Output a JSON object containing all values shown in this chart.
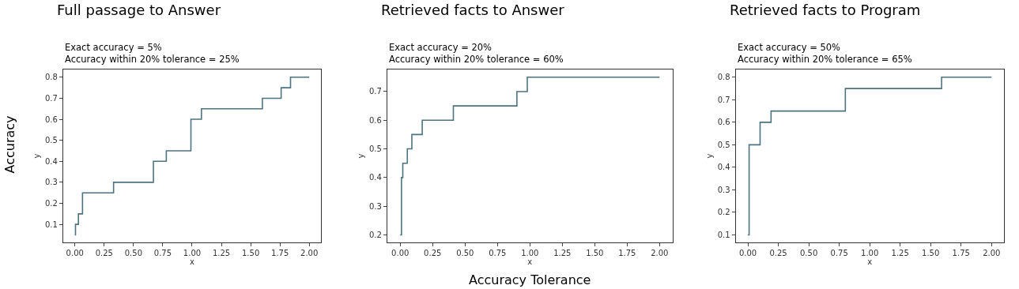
{
  "chart_data": [
    {
      "type": "step",
      "title": "Full passage to Answer",
      "subtitle": "Exact accuracy = 5%\nAccuracy within 20% tolerance = 25%",
      "xlabel": "x",
      "ylabel": "y",
      "annotations": [
        "Accuracy"
      ],
      "series": [
        {
          "color": "#4d7380",
          "x": [
            0,
            0.005,
            0.03,
            0.065,
            0.33,
            0.67,
            0.78,
            0.99,
            1.08,
            1.6,
            1.76,
            1.84,
            2.0
          ],
          "values": [
            0.05,
            0.1,
            0.15,
            0.25,
            0.3,
            0.4,
            0.45,
            0.6,
            0.65,
            0.7,
            0.75,
            0.8,
            0.8
          ]
        }
      ],
      "xlim": [
        -0.1,
        2.1
      ],
      "ylim": [
        0.0125,
        0.8375
      ],
      "xticks": [
        {
          "value": 0,
          "label": "0.00"
        },
        {
          "value": 0.25,
          "label": "0.25"
        },
        {
          "value": 0.5,
          "label": "0.50"
        },
        {
          "value": 0.75,
          "label": "0.75"
        },
        {
          "value": 1,
          "label": "1.00"
        },
        {
          "value": 1.25,
          "label": "1.25"
        },
        {
          "value": 1.5,
          "label": "1.50"
        },
        {
          "value": 1.75,
          "label": "1.75"
        },
        {
          "value": 2,
          "label": "2.00"
        }
      ],
      "yticks": [
        0.1,
        0.2,
        0.3,
        0.4,
        0.5,
        0.6,
        0.7,
        0.8
      ]
    },
    {
      "type": "step",
      "title": "Retrieved facts to Answer",
      "subtitle": "Exact accuracy = 20%\nAccuracy within 20% tolerance = 60%",
      "xlabel": "x",
      "ylabel": "y",
      "annotations": [
        "Accuracy Tolerance"
      ],
      "series": [
        {
          "color": "#4d7380",
          "x": [
            0,
            0.01,
            0.02,
            0.055,
            0.09,
            0.17,
            0.41,
            0.9,
            0.98,
            2.0
          ],
          "values": [
            0.2,
            0.4,
            0.45,
            0.5,
            0.55,
            0.6,
            0.65,
            0.7,
            0.75,
            0.75
          ]
        }
      ],
      "xlim": [
        -0.1,
        2.1
      ],
      "ylim": [
        0.1725,
        0.7775
      ],
      "xticks": [
        {
          "value": 0,
          "label": "0.00"
        },
        {
          "value": 0.25,
          "label": "0.25"
        },
        {
          "value": 0.5,
          "label": "0.50"
        },
        {
          "value": 0.75,
          "label": "0.75"
        },
        {
          "value": 1,
          "label": "1.00"
        },
        {
          "value": 1.25,
          "label": "1.25"
        },
        {
          "value": 1.5,
          "label": "1.50"
        },
        {
          "value": 1.75,
          "label": "1.75"
        },
        {
          "value": 2,
          "label": "2.00"
        }
      ],
      "yticks": [
        0.2,
        0.3,
        0.4,
        0.5,
        0.6,
        0.7
      ]
    },
    {
      "type": "step",
      "title": "Retrieved facts to Program",
      "subtitle": "Exact accuracy = 50%\nAccuracy within 20% tolerance = 65%",
      "xlabel": "x",
      "ylabel": "y",
      "series": [
        {
          "color": "#4d7380",
          "x": [
            0,
            0.01,
            0.1,
            0.19,
            0.8,
            1.59,
            2.0
          ],
          "values": [
            0.1,
            0.5,
            0.6,
            0.65,
            0.75,
            0.8,
            0.8
          ]
        }
      ],
      "xlim": [
        -0.1,
        2.1
      ],
      "ylim": [
        0.065,
        0.835
      ],
      "xticks": [
        {
          "value": 0,
          "label": "0.00"
        },
        {
          "value": 0.25,
          "label": "0.25"
        },
        {
          "value": 0.5,
          "label": "0.50"
        },
        {
          "value": 0.75,
          "label": "0.75"
        },
        {
          "value": 1,
          "label": "1.00"
        },
        {
          "value": 1.25,
          "label": "1.25"
        },
        {
          "value": 1.5,
          "label": "1.50"
        },
        {
          "value": 1.75,
          "label": "1.75"
        },
        {
          "value": 2,
          "label": "2.00"
        }
      ],
      "yticks": [
        0.1,
        0.2,
        0.3,
        0.4,
        0.5,
        0.6,
        0.7,
        0.8
      ]
    }
  ]
}
